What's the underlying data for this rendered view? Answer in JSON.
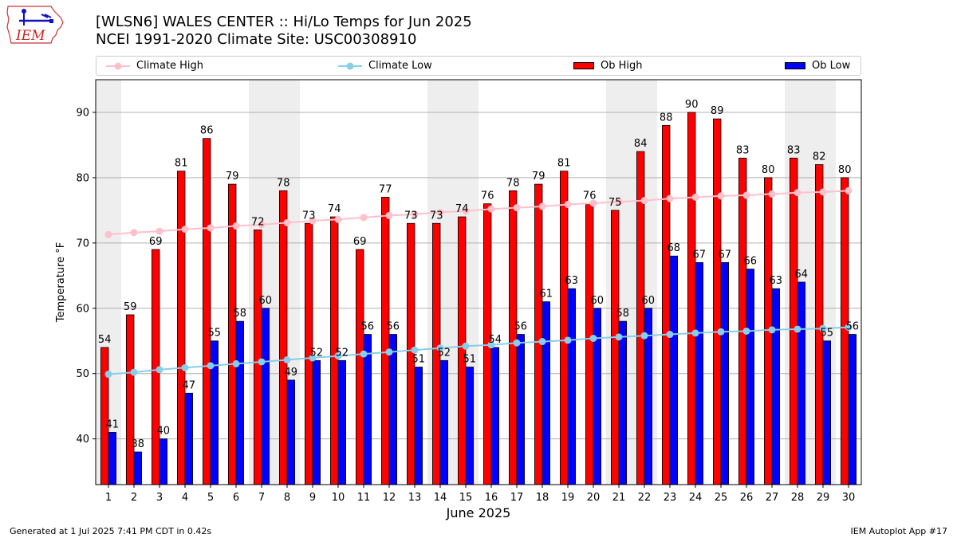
{
  "header": {
    "title_line1": "[WLSN6] WALES CENTER :: Hi/Lo Temps for Jun 2025",
    "title_line2": "NCEI 1991-2020 Climate Site: USC00308910"
  },
  "logo": {
    "text": "IEM",
    "icon": "iem-logo-icon"
  },
  "footer": {
    "generated": "Generated at 1 Jul 2025 7:41 PM CDT in 0.42s",
    "app": "IEM Autoplot App #17"
  },
  "colors": {
    "ob_high": "#ff0000",
    "ob_low": "#0000ff",
    "climate_high": "#ffc0cb",
    "climate_low": "#87ceeb",
    "weekend_shade": "#eeeeee",
    "grid": "#b0b0b0"
  },
  "chart_data": {
    "type": "bar",
    "xlabel": "June 2025",
    "ylabel": "Temperature °F",
    "ylim": [
      33,
      95
    ],
    "yticks": [
      40,
      50,
      60,
      70,
      80,
      90
    ],
    "grid": "horizontal",
    "legend_placement": "top",
    "categories": [
      "1",
      "2",
      "3",
      "4",
      "5",
      "6",
      "7",
      "8",
      "9",
      "10",
      "11",
      "12",
      "13",
      "14",
      "15",
      "16",
      "17",
      "18",
      "19",
      "20",
      "21",
      "22",
      "23",
      "24",
      "25",
      "26",
      "27",
      "28",
      "29",
      "30"
    ],
    "weekend_days": [
      1,
      7,
      8,
      14,
      15,
      21,
      22,
      28,
      29
    ],
    "series": [
      {
        "name": "Ob High",
        "kind": "bar",
        "values": [
          54,
          59,
          69,
          81,
          86,
          79,
          72,
          78,
          73,
          74,
          69,
          77,
          73,
          73,
          74,
          76,
          78,
          79,
          81,
          76,
          75,
          84,
          88,
          90,
          89,
          83,
          80,
          83,
          82,
          80
        ]
      },
      {
        "name": "Ob Low",
        "kind": "bar",
        "values": [
          41,
          38,
          40,
          47,
          55,
          58,
          60,
          49,
          52,
          52,
          56,
          56,
          51,
          52,
          51,
          54,
          56,
          61,
          63,
          60,
          58,
          60,
          68,
          67,
          67,
          66,
          63,
          64,
          55,
          56
        ]
      },
      {
        "name": "Climate High",
        "kind": "line",
        "values": [
          71.3,
          71.6,
          71.8,
          72.1,
          72.3,
          72.6,
          72.8,
          73.1,
          73.4,
          73.6,
          73.9,
          74.2,
          74.4,
          74.7,
          74.9,
          75.2,
          75.4,
          75.6,
          75.9,
          76.1,
          76.3,
          76.5,
          76.8,
          77.0,
          77.2,
          77.3,
          77.5,
          77.7,
          77.8,
          78.0
        ]
      },
      {
        "name": "Climate Low",
        "kind": "line",
        "values": [
          49.9,
          50.2,
          50.6,
          50.9,
          51.2,
          51.5,
          51.8,
          52.1,
          52.4,
          52.7,
          53.0,
          53.3,
          53.6,
          53.9,
          54.2,
          54.4,
          54.7,
          54.9,
          55.1,
          55.4,
          55.6,
          55.8,
          56.0,
          56.2,
          56.4,
          56.5,
          56.7,
          56.8,
          56.9,
          57.1
        ]
      }
    ]
  }
}
